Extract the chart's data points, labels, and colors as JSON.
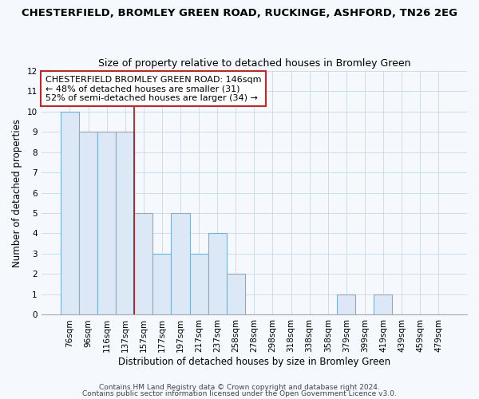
{
  "title": "CHESTERFIELD, BROMLEY GREEN ROAD, RUCKINGE, ASHFORD, TN26 2EG",
  "subtitle": "Size of property relative to detached houses in Bromley Green",
  "xlabel": "Distribution of detached houses by size in Bromley Green",
  "ylabel": "Number of detached properties",
  "bar_labels": [
    "76sqm",
    "96sqm",
    "116sqm",
    "137sqm",
    "157sqm",
    "177sqm",
    "197sqm",
    "217sqm",
    "237sqm",
    "258sqm",
    "278sqm",
    "298sqm",
    "318sqm",
    "338sqm",
    "358sqm",
    "379sqm",
    "399sqm",
    "419sqm",
    "439sqm",
    "459sqm",
    "479sqm"
  ],
  "bar_values": [
    10,
    9,
    9,
    9,
    5,
    3,
    5,
    3,
    4,
    2,
    0,
    0,
    0,
    0,
    0,
    1,
    0,
    1,
    0,
    0,
    0
  ],
  "bar_fill_color": "#dce8f5",
  "bar_edge_color": "#7ab0d4",
  "grid_color": "#c8d8e8",
  "background_color": "#f5f8fc",
  "plot_bg_color": "#f5f8fc",
  "ylim": [
    0,
    12
  ],
  "yticks": [
    0,
    1,
    2,
    3,
    4,
    5,
    6,
    7,
    8,
    9,
    10,
    11,
    12
  ],
  "vline_x": 3.5,
  "vline_color": "#aa1111",
  "annotation_text": "CHESTERFIELD BROMLEY GREEN ROAD: 146sqm\n← 48% of detached houses are smaller (31)\n52% of semi-detached houses are larger (34) →",
  "annotation_box_facecolor": "#ffffff",
  "annotation_box_edgecolor": "#cc2222",
  "footer1": "Contains HM Land Registry data © Crown copyright and database right 2024.",
  "footer2": "Contains public sector information licensed under the Open Government Licence v3.0.",
  "title_fontsize": 9.5,
  "subtitle_fontsize": 9,
  "tick_fontsize": 7.5,
  "label_fontsize": 8.5,
  "annotation_fontsize": 8,
  "footer_fontsize": 6.5
}
